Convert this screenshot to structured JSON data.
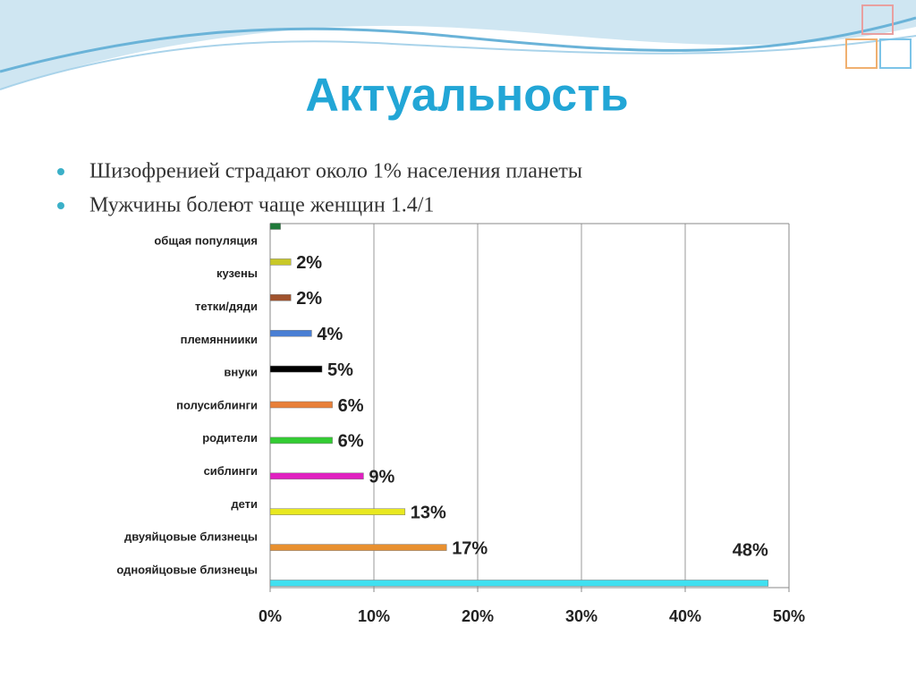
{
  "slide": {
    "title": "Актуальность",
    "bullets": [
      "Шизофренией страдают около 1% населения планеты",
      "Мужчины болеют чаще женщин 1.4/1"
    ]
  },
  "chart_data": {
    "type": "bar",
    "orientation": "horizontal",
    "categories": [
      "общая популяция",
      "кузены",
      "тетки/дяди",
      "племянниики",
      "внуки",
      "полусиблинги",
      "родители",
      "сиблинги",
      "дети",
      "двуяйцовые близнецы",
      "однояйцовые близнецы"
    ],
    "values": [
      1,
      2,
      2,
      4,
      5,
      6,
      6,
      9,
      13,
      17,
      48
    ],
    "value_labels": [
      null,
      "2%",
      "2%",
      "4%",
      "5%",
      "6%",
      "6%",
      "9%",
      "13%",
      "17%",
      "48%"
    ],
    "colors": [
      "#1f7a3a",
      "#c8c828",
      "#a0522d",
      "#4a7fd4",
      "#000000",
      "#e8803a",
      "#33cc33",
      "#e020c0",
      "#e8e820",
      "#e89030",
      "#40e0f0"
    ],
    "xlim": [
      0,
      50
    ],
    "xticks": [
      {
        "value": 0,
        "label": "0%"
      },
      {
        "value": 10,
        "label": "10%"
      },
      {
        "value": 20,
        "label": "20%"
      },
      {
        "value": 30,
        "label": "30%"
      },
      {
        "value": 40,
        "label": "40%"
      },
      {
        "value": 50,
        "label": "50%"
      }
    ],
    "grid": true
  }
}
